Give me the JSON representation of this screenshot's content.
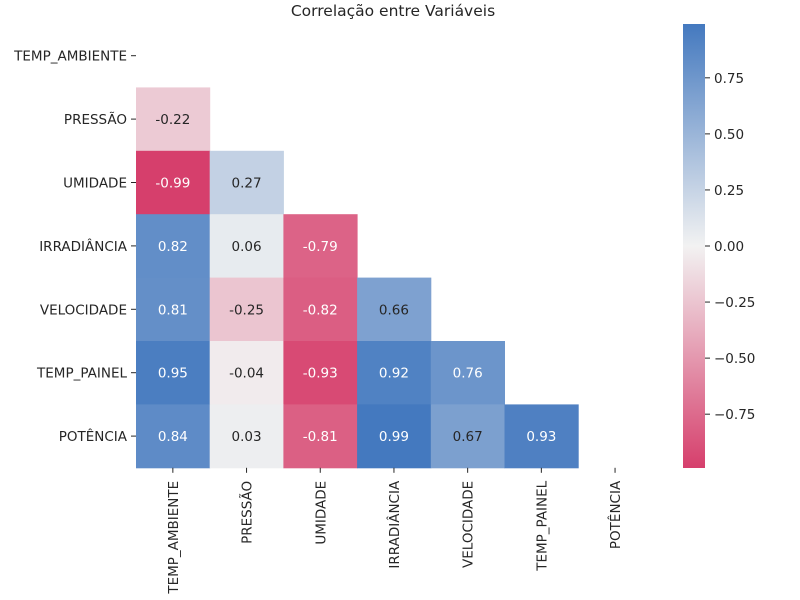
{
  "chart_data": {
    "type": "heatmap",
    "title": "Correlação entre Variáveis",
    "variables": [
      "TEMP_AMBIENTE",
      "PRESSÃO",
      "UMIDADE",
      "IRRADIÂNCIA",
      "VELOCIDADE",
      "TEMP_PAINEL",
      "POTÊNCIA"
    ],
    "mask": "upper triangle including diagonal",
    "matrix": [
      [
        null,
        null,
        null,
        null,
        null,
        null,
        null
      ],
      [
        -0.22,
        null,
        null,
        null,
        null,
        null,
        null
      ],
      [
        -0.99,
        0.27,
        null,
        null,
        null,
        null,
        null
      ],
      [
        0.82,
        0.06,
        -0.79,
        null,
        null,
        null,
        null
      ],
      [
        0.81,
        -0.25,
        -0.82,
        0.66,
        null,
        null,
        null
      ],
      [
        0.95,
        -0.04,
        -0.93,
        0.92,
        0.76,
        null,
        null
      ],
      [
        0.84,
        0.03,
        -0.81,
        0.99,
        0.67,
        0.93,
        null
      ]
    ],
    "annotation_labels": [
      [],
      [
        "-0.22"
      ],
      [
        "-0.99",
        "0.27"
      ],
      [
        "0.82",
        "0.06",
        "-0.79"
      ],
      [
        "0.81",
        "-0.25",
        "-0.82",
        "0.66"
      ],
      [
        "0.95",
        "-0.04",
        "-0.93",
        "0.92",
        "0.76"
      ],
      [
        "0.84",
        "0.03",
        "-0.81",
        "0.99",
        "0.67",
        "0.93"
      ]
    ],
    "colorbar": {
      "range": [
        -0.99,
        0.99
      ],
      "ticks": [
        0.75,
        0.5,
        0.25,
        0.0,
        -0.25,
        -0.5,
        -0.75
      ],
      "tick_labels": [
        "0.75",
        "0.50",
        "0.25",
        "0.00",
        "−0.25",
        "−0.50",
        "−0.75"
      ],
      "colors": {
        "negative": "#d63f6c",
        "center": "#f2f2f2",
        "positive": "#4479bf"
      }
    }
  }
}
